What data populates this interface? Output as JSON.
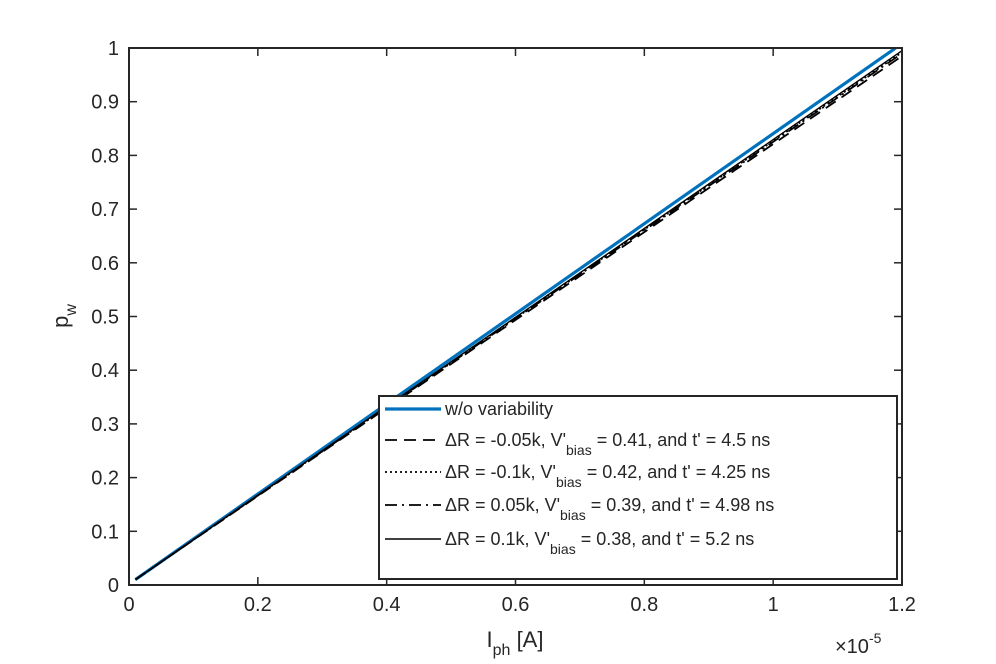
{
  "chart_data": {
    "type": "line",
    "title": "",
    "xlabel": {
      "main": "I",
      "sub": "ph",
      "rest": " [A]"
    },
    "ylabel": {
      "main": "p",
      "sub": "w"
    },
    "x_multiplier": {
      "base": "×10",
      "exp": "-5"
    },
    "xlim": [
      0,
      1.2
    ],
    "ylim": [
      0,
      1
    ],
    "xticks": [
      "0",
      "0.2",
      "0.4",
      "0.6",
      "0.8",
      "1",
      "1.2"
    ],
    "yticks": [
      "0",
      "0.1",
      "0.2",
      "0.3",
      "0.4",
      "0.5",
      "0.6",
      "0.7",
      "0.8",
      "0.9",
      "1"
    ],
    "grid": false,
    "legend_position": "bottom-right",
    "series": [
      {
        "color": "#0072BD",
        "dash": "solid",
        "width": 3.2,
        "legend": {
          "pre": "w/o variability",
          "sub": "",
          "post": ""
        },
        "x": [
          0.01,
          1.19
        ],
        "y": [
          0.01,
          1.0
        ]
      },
      {
        "color": "#000000",
        "dash": "dashed",
        "width": 1.8,
        "legend": {
          "pre": "ΔR = -0.05k, V'",
          "sub": "bias",
          "post": " = 0.41, and t' = 4.5 ns"
        },
        "x": [
          0.01,
          1.2
        ],
        "y": [
          0.01,
          0.985
        ]
      },
      {
        "color": "#000000",
        "dash": "dotted",
        "width": 1.8,
        "legend": {
          "pre": "ΔR = -0.1k, V'",
          "sub": "bias",
          "post": " = 0.42, and t' = 4.25 ns"
        },
        "x": [
          0.01,
          1.2
        ],
        "y": [
          0.01,
          0.992
        ]
      },
      {
        "color": "#000000",
        "dash": "dashdot",
        "width": 1.8,
        "legend": {
          "pre": "ΔR = 0.05k, V'",
          "sub": "bias",
          "post": " = 0.39, and t' = 4.98 ns"
        },
        "x": [
          0.01,
          1.2
        ],
        "y": [
          0.01,
          0.99
        ]
      },
      {
        "color": "#000000",
        "dash": "solid",
        "width": 1.4,
        "legend": {
          "pre": "ΔR = 0.1k, V'",
          "sub": "bias",
          "post": " = 0.38, and t' = 5.2 ns"
        },
        "x": [
          0.01,
          1.2
        ],
        "y": [
          0.01,
          0.995
        ]
      }
    ]
  }
}
